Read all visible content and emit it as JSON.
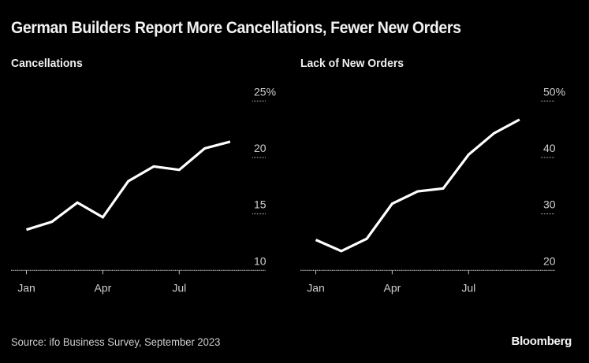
{
  "title": "German Builders Report More Cancellations, Fewer New Orders",
  "source": "Source: ifo Business Survey, September 2023",
  "brand": "Bloomberg",
  "colors": {
    "background": "#000000",
    "line": "#ffffff",
    "text": "#cfcfcf",
    "grid": "#bdbdbd"
  },
  "chart_data": [
    {
      "type": "line",
      "title": "Cancellations",
      "xlabel": "",
      "ylabel": "",
      "x": [
        "Jan",
        "Feb",
        "Mar",
        "Apr",
        "May",
        "Jun",
        "Jul",
        "Aug",
        "Sep"
      ],
      "x_tick_labels": [
        "Jan",
        "Apr",
        "Jul"
      ],
      "y_ticks": [
        10,
        15,
        20,
        25
      ],
      "y_tick_labels": [
        "10",
        "15",
        "20",
        "25%"
      ],
      "ylim": [
        10,
        25
      ],
      "series": [
        {
          "name": "Cancellations",
          "values": [
            13.6,
            14.3,
            16.0,
            14.7,
            17.9,
            19.2,
            18.9,
            20.8,
            21.4
          ]
        }
      ],
      "grid": true,
      "y_axis_side": "right"
    },
    {
      "type": "line",
      "title": "Lack of New Orders",
      "xlabel": "",
      "ylabel": "",
      "x": [
        "Jan",
        "Feb",
        "Mar",
        "Apr",
        "May",
        "Jun",
        "Jul",
        "Aug",
        "Sep"
      ],
      "x_tick_labels": [
        "Jan",
        "Apr",
        "Jul"
      ],
      "y_ticks": [
        20,
        30,
        40,
        50
      ],
      "y_tick_labels": [
        "20",
        "30",
        "40",
        "50%"
      ],
      "ylim": [
        20,
        50
      ],
      "series": [
        {
          "name": "Lack of New Orders",
          "values": [
            25.4,
            23.4,
            25.6,
            31.8,
            34.0,
            34.5,
            40.5,
            44.3,
            46.7
          ]
        }
      ],
      "grid": true,
      "y_axis_side": "right"
    }
  ]
}
